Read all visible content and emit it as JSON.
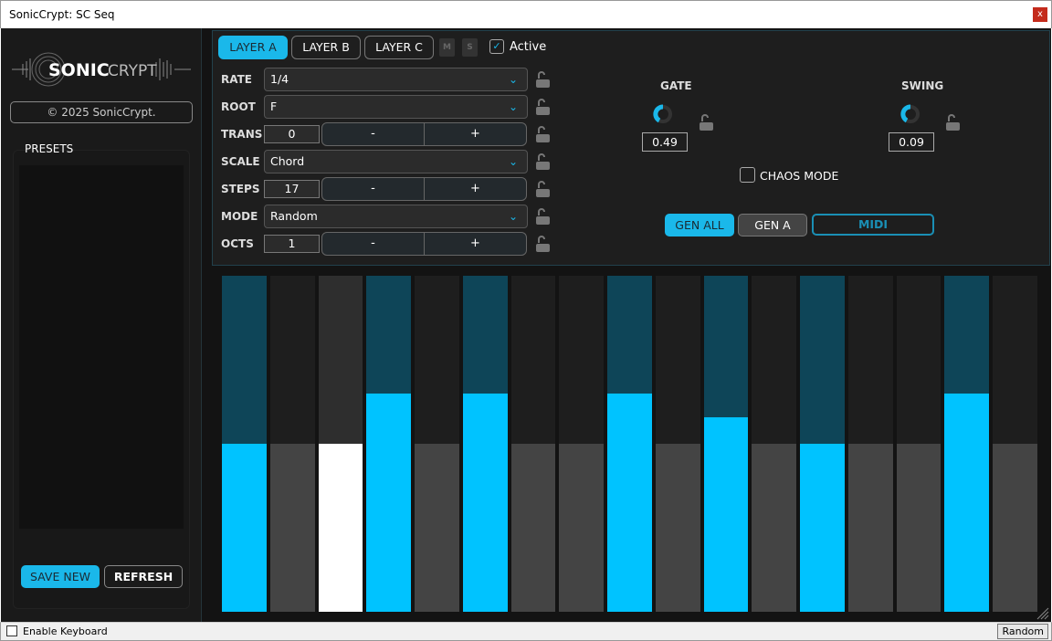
{
  "window": {
    "title": "SonicCrypt: SC Seq",
    "close": "x"
  },
  "sidebar": {
    "logo_text_bold": "SONIC",
    "logo_text_light": "CRYPT",
    "copyright": "© 2025 SonicCrypt.",
    "presets_label": "PRESETS",
    "save_new": "SAVE NEW",
    "refresh": "REFRESH"
  },
  "layers": {
    "tabs": [
      "LAYER A",
      "LAYER B",
      "LAYER C"
    ],
    "active_tab": 0,
    "mute": "M",
    "solo": "S",
    "active_label": "Active",
    "active_checked": true
  },
  "params": {
    "rate": {
      "label": "RATE",
      "value": "1/4"
    },
    "root": {
      "label": "ROOT",
      "value": "F"
    },
    "trans": {
      "label": "TRANS",
      "value": "0",
      "minus": "-",
      "plus": "+"
    },
    "scale": {
      "label": "SCALE",
      "value": "Chord"
    },
    "steps": {
      "label": "STEPS",
      "value": "17",
      "minus": "-",
      "plus": "+"
    },
    "mode": {
      "label": "MODE",
      "value": "Random"
    },
    "octs": {
      "label": "OCTS",
      "value": "1",
      "minus": "-",
      "plus": "+"
    }
  },
  "gate": {
    "label": "GATE",
    "value": "0.49"
  },
  "swing": {
    "label": "SWING",
    "value": "0.09"
  },
  "chaos": {
    "label": "CHAOS MODE",
    "checked": false
  },
  "actions": {
    "gen_all": "GEN ALL",
    "gen_a": "GEN A",
    "midi": "MIDI"
  },
  "colors": {
    "accent": "#00c3ff",
    "inactive_step": "#444444",
    "playhead": "#ffffff",
    "active_bg": "#0e4558"
  },
  "sequence": {
    "steps": [
      {
        "active": true,
        "level": 0.5
      },
      {
        "active": false,
        "level": 0.5
      },
      {
        "active": false,
        "level": 0.5,
        "playhead": true
      },
      {
        "active": true,
        "level": 0.65
      },
      {
        "active": false,
        "level": 0.5
      },
      {
        "active": true,
        "level": 0.65
      },
      {
        "active": false,
        "level": 0.5
      },
      {
        "active": false,
        "level": 0.5
      },
      {
        "active": true,
        "level": 0.65
      },
      {
        "active": false,
        "level": 0.5
      },
      {
        "active": true,
        "level": 0.58
      },
      {
        "active": false,
        "level": 0.5
      },
      {
        "active": true,
        "level": 0.5
      },
      {
        "active": false,
        "level": 0.5
      },
      {
        "active": false,
        "level": 0.5
      },
      {
        "active": true,
        "level": 0.65
      },
      {
        "active": false,
        "level": 0.5
      }
    ]
  },
  "statusbar": {
    "enable_keyboard": "Enable Keyboard",
    "mode_button": "Random"
  }
}
